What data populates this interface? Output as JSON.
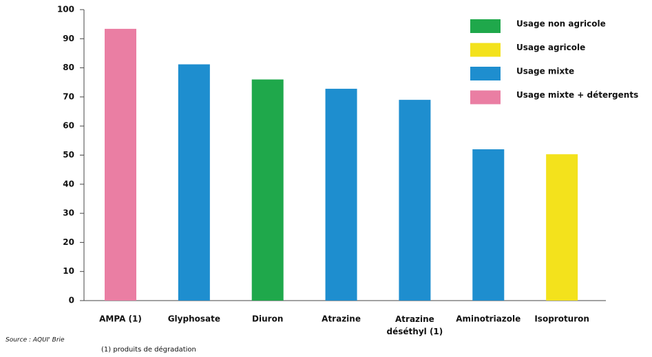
{
  "chart_data": {
    "type": "bar",
    "categories": [
      "AMPA (1)",
      "Glyphosate",
      "Diuron",
      "Atrazine",
      "Atrazine déséthyl (1)",
      "Aminotriazole",
      "Isoproturon"
    ],
    "values": [
      93.4,
      81.2,
      76,
      72.8,
      69,
      52,
      50.3
    ],
    "colors": [
      "#ea7ea3",
      "#1e8ecf",
      "#1fa84b",
      "#1e8ecf",
      "#1e8ecf",
      "#1e8ecf",
      "#f3e21c"
    ],
    "ylim": [
      0,
      100
    ],
    "yticks": [
      0,
      10,
      20,
      30,
      40,
      50,
      60,
      70,
      80,
      90,
      100
    ],
    "grid": false,
    "legend_position": "top-right",
    "legend": [
      {
        "label": "Usage non agricole",
        "color": "#1fa84b"
      },
      {
        "label": "Usage agricole",
        "color": "#f3e21c"
      },
      {
        "label": "Usage mixte",
        "color": "#1e8ecf"
      },
      {
        "label": "Usage mixte + détergents",
        "color": "#ea7ea3"
      }
    ],
    "source": "Source : AQUI' Brie",
    "footnote": "(1) produits de dégradation"
  }
}
